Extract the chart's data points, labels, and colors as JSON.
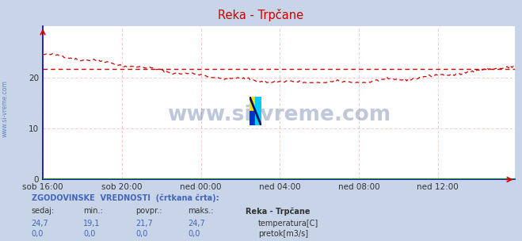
{
  "title": "Reka - Trpčane",
  "title_color": "#cc0000",
  "bg_color": "#c8d4e8",
  "plot_bg_color": "#ffffff",
  "grid_color": "#ffbbbb",
  "axis_color": "#cc0000",
  "border_color": "#0000cc",
  "x_tick_labels": [
    "sob 16:00",
    "sob 20:00",
    "ned 00:00",
    "ned 04:00",
    "ned 08:00",
    "ned 12:00"
  ],
  "x_tick_positions": [
    0,
    48,
    96,
    144,
    192,
    240
  ],
  "y_min": 0,
  "y_max": 30,
  "y_ticks": [
    0,
    10,
    20
  ],
  "watermark_text": "www.si-vreme.com",
  "sidebar_text": "www.si-vreme.com",
  "temp_color": "#cc0000",
  "temp_avg": 21.7,
  "temp_min": 19.1,
  "temp_max": 24.7,
  "temp_current": 24.7,
  "pretok_color": "#00aa00",
  "pretok_current": 0.0,
  "pretok_min": 0.0,
  "pretok_avg": 0.0,
  "pretok_max": 0.0,
  "n_points": 288,
  "text_color": "#4466bb",
  "label_color": "#333333"
}
